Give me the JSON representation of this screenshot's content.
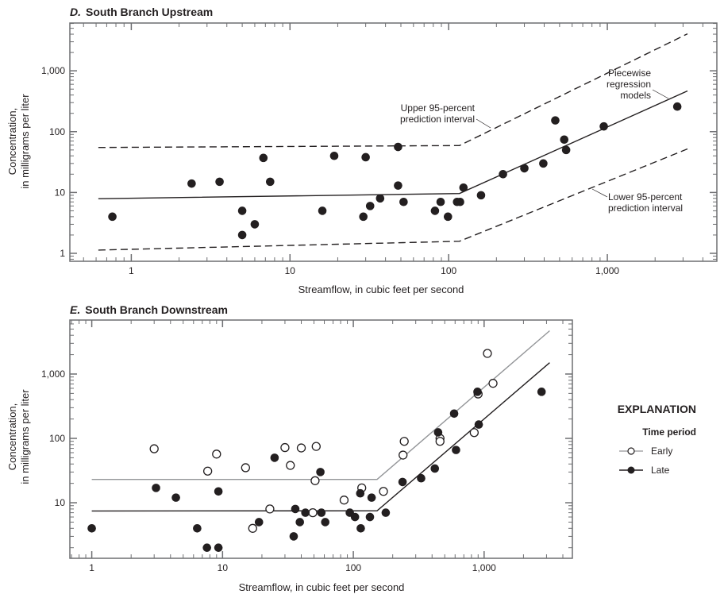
{
  "chart_data": [
    {
      "type": "scatter",
      "panel_letter": "D.",
      "title": "South Branch Upstream",
      "xlabel": "Streamflow, in cubic feet per second",
      "ylabel": [
        "Concentration,",
        "in milligrams per liter"
      ],
      "xscale": "log",
      "yscale": "log",
      "xlim": [
        0.41,
        4900
      ],
      "ylim": [
        0.74,
        6100
      ],
      "xticks": [
        {
          "value": 1,
          "label": "1"
        },
        {
          "value": 10,
          "label": "10"
        },
        {
          "value": 100,
          "label": "100"
        },
        {
          "value": 1000,
          "label": "1,000"
        }
      ],
      "yticks": [
        {
          "value": 1,
          "label": "1"
        },
        {
          "value": 10,
          "label": "10"
        },
        {
          "value": 100,
          "label": "100"
        },
        {
          "value": 1000,
          "label": "1,000"
        }
      ],
      "grid": false,
      "points": {
        "name": "Observations",
        "marker": "filled-circle",
        "x": [
          0.76,
          2.4,
          3.6,
          6.8,
          7.5,
          5,
          6,
          5,
          16,
          19,
          30,
          29,
          32,
          37,
          48,
          48,
          52,
          82,
          89,
          99,
          113,
          118,
          124,
          160,
          220,
          300,
          395,
          470,
          535,
          550,
          950,
          2760
        ],
        "y": [
          4,
          14,
          15,
          37,
          15,
          5,
          3,
          2,
          5,
          40,
          38,
          4,
          6,
          8,
          56,
          13,
          7,
          5,
          7,
          4,
          7,
          7,
          12,
          9,
          20,
          25,
          30,
          153,
          74,
          50,
          122,
          258
        ]
      },
      "lines": [
        {
          "name": "Piecewise regression model",
          "style": "solid",
          "color": "#231f20",
          "x": [
            0.62,
            117,
            3200
          ],
          "y": [
            7.9,
            9.6,
            467
          ]
        },
        {
          "name": "Upper 95-percent prediction interval",
          "style": "dashed",
          "color": "#231f20",
          "x": [
            0.62,
            117,
            3200
          ],
          "y": [
            55,
            59,
            4050
          ]
        },
        {
          "name": "Lower 95-percent prediction interval",
          "style": "dashed",
          "color": "#231f20",
          "x": [
            0.62,
            117,
            3200
          ],
          "y": [
            1.13,
            1.58,
            52
          ]
        }
      ],
      "annotations": {
        "upper": [
          "Upper 95-percent",
          "prediction interval"
        ],
        "model": [
          "Piecewise",
          "regression",
          "models"
        ],
        "lower": [
          "Lower 95-percent",
          "prediction interval"
        ]
      }
    },
    {
      "type": "scatter",
      "panel_letter": "E.",
      "title": "South Branch Downstream",
      "xlabel": "Streamflow, in cubic feet per second",
      "ylabel": [
        "Concentration,",
        "in milligrams per liter"
      ],
      "xscale": "log",
      "yscale": "log",
      "xlim": [
        0.68,
        4730
      ],
      "ylim": [
        1.37,
        6900
      ],
      "xticks": [
        {
          "value": 1,
          "label": "1"
        },
        {
          "value": 10,
          "label": "10"
        },
        {
          "value": 100,
          "label": "100"
        },
        {
          "value": 1000,
          "label": "1,000"
        }
      ],
      "yticks": [
        {
          "value": 10,
          "label": "10"
        },
        {
          "value": 100,
          "label": "100"
        },
        {
          "value": 1000,
          "label": "1,000"
        }
      ],
      "grid": false,
      "series": [
        {
          "name": "Early",
          "marker": "open-circle",
          "color": "#231f20",
          "x": [
            3,
            7.7,
            9,
            15,
            17,
            23,
            30,
            33,
            40,
            52,
            51,
            49,
            85,
            116,
            170,
            240,
            245,
            460,
            460,
            840,
            900,
            1060,
            1170
          ],
          "y": [
            69,
            31,
            57,
            35,
            4,
            8,
            72,
            38,
            71,
            75,
            22,
            7,
            11,
            17,
            15,
            55,
            90,
            100,
            90,
            123,
            490,
            2090,
            717
          ]
        },
        {
          "name": "Late",
          "marker": "filled-circle",
          "color": "#231f20",
          "x": [
            1,
            3.1,
            4.4,
            6.4,
            7.6,
            9.3,
            9.3,
            19,
            25,
            35,
            36,
            39,
            43,
            56,
            57,
            61,
            94,
            103,
            113,
            114,
            138,
            134,
            177,
            238,
            330,
            420,
            445,
            590,
            610,
            890,
            910,
            2750
          ],
          "y": [
            4,
            17,
            12,
            4,
            2,
            2,
            15,
            5,
            50,
            3,
            8,
            5,
            7,
            30,
            7,
            5,
            7,
            6,
            14,
            4,
            12,
            6,
            7,
            21,
            24,
            34,
            124,
            243,
            66,
            530,
            164,
            530
          ]
        }
      ],
      "lines": [
        {
          "name": "Early",
          "style": "solid",
          "color": "#939598",
          "x": [
            1,
            152,
            3170
          ],
          "y": [
            23,
            23,
            4700
          ]
        },
        {
          "name": "Late",
          "style": "solid",
          "color": "#231f20",
          "x": [
            1,
            152,
            3170
          ],
          "y": [
            7.45,
            7.5,
            1500
          ]
        }
      ],
      "legend": {
        "title": "EXPLANATION",
        "subtitle": "Time period",
        "placement": "right",
        "entries": [
          "Early",
          "Late"
        ]
      }
    }
  ]
}
